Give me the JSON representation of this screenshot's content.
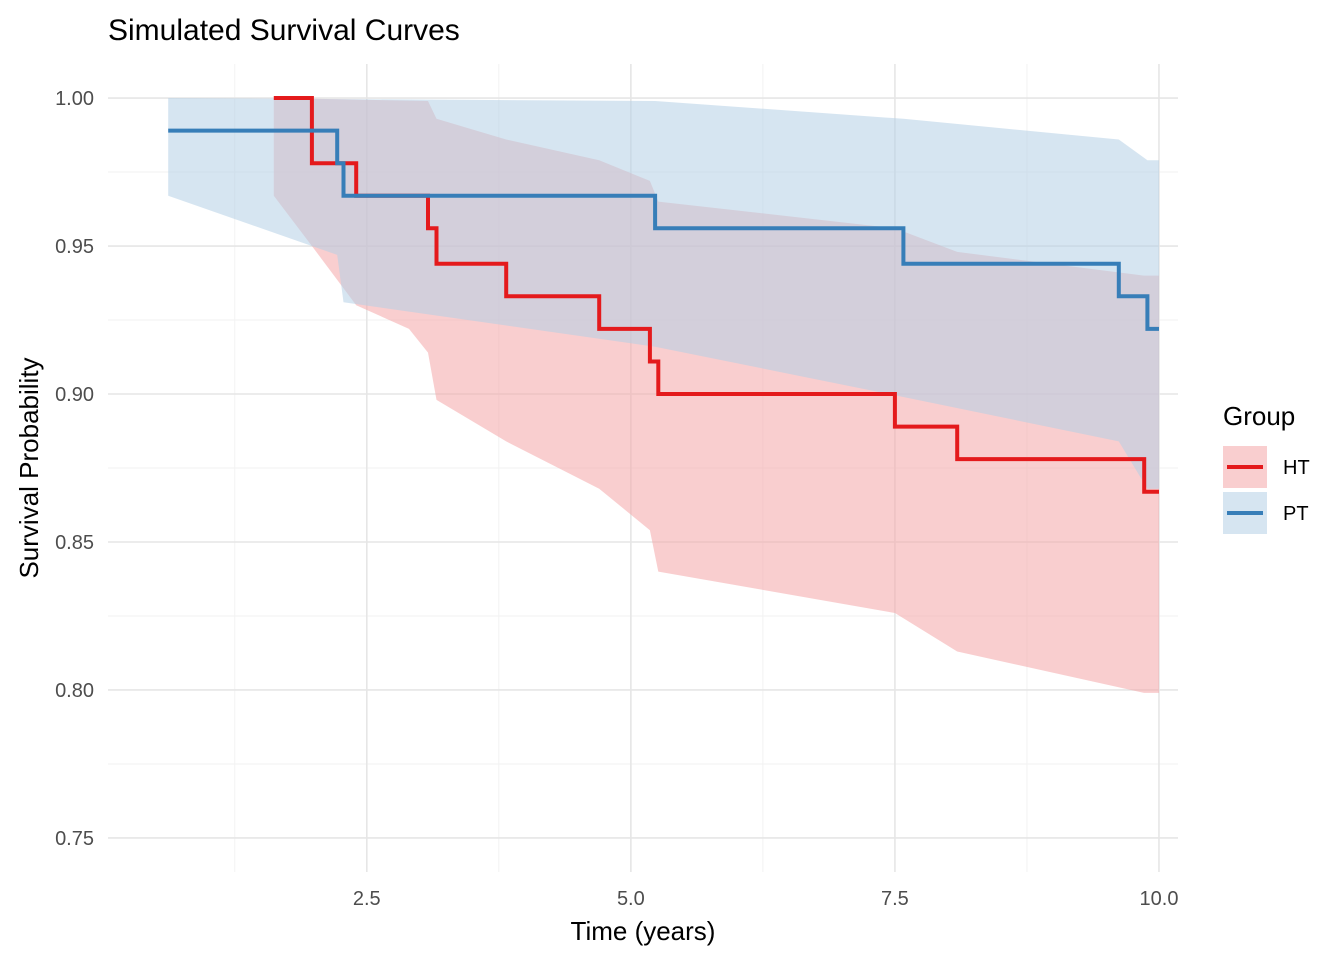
{
  "chart_data": {
    "type": "line",
    "subtype": "step-survival-with-confidence-bands",
    "title": "Simulated Survival Curves",
    "xlabel": "Time (years)",
    "ylabel": "Survival Probability",
    "xlim": [
      0.05,
      10.18
    ],
    "ylim": [
      0.7385,
      1.0115
    ],
    "x_ticks": [
      2.5,
      5.0,
      7.5,
      10.0
    ],
    "x_tick_labels": [
      "2.5",
      "5.0",
      "7.5",
      "10.0"
    ],
    "x_minor_ticks": [
      1.25,
      3.75,
      6.25,
      8.75
    ],
    "y_ticks": [
      0.75,
      0.8,
      0.85,
      0.9,
      0.95,
      1.0
    ],
    "y_tick_labels": [
      "0.75",
      "0.80",
      "0.85",
      "0.90",
      "0.95",
      "1.00"
    ],
    "y_minor_ticks": [
      0.775,
      0.825,
      0.875,
      0.925,
      0.975
    ],
    "grid": true,
    "legend": {
      "title": "Group",
      "position": "right"
    },
    "series": [
      {
        "name": "HT",
        "color": "#E41A1C",
        "band_color": "#F4A6A7",
        "steps": [
          [
            1.62,
            1.0
          ],
          [
            1.98,
            0.978
          ],
          [
            2.4,
            0.967
          ],
          [
            3.08,
            0.956
          ],
          [
            3.16,
            0.944
          ],
          [
            3.82,
            0.933
          ],
          [
            4.7,
            0.922
          ],
          [
            5.18,
            0.911
          ],
          [
            5.26,
            0.9
          ],
          [
            7.5,
            0.889
          ],
          [
            8.09,
            0.878
          ],
          [
            9.86,
            0.867
          ],
          [
            10.0,
            0.867
          ]
        ],
        "band": {
          "upper": [
            [
              1.62,
              1.0
            ],
            [
              3.08,
              0.999
            ],
            [
              3.16,
              0.993
            ],
            [
              3.82,
              0.986
            ],
            [
              4.7,
              0.979
            ],
            [
              5.18,
              0.972
            ],
            [
              5.26,
              0.965
            ],
            [
              7.5,
              0.956
            ],
            [
              8.09,
              0.948
            ],
            [
              9.86,
              0.94
            ],
            [
              10.0,
              0.94
            ]
          ],
          "lower": [
            [
              1.62,
              0.967
            ],
            [
              1.98,
              0.95
            ],
            [
              2.4,
              0.93
            ],
            [
              2.9,
              0.922
            ],
            [
              3.08,
              0.914
            ],
            [
              3.16,
              0.898
            ],
            [
              3.82,
              0.884
            ],
            [
              4.7,
              0.868
            ],
            [
              5.18,
              0.854
            ],
            [
              5.26,
              0.84
            ],
            [
              7.5,
              0.826
            ],
            [
              8.09,
              0.813
            ],
            [
              9.86,
              0.799
            ],
            [
              10.0,
              0.799
            ]
          ]
        }
      },
      {
        "name": "PT",
        "color": "#377EB8",
        "band_color": "#B4CFE6",
        "steps": [
          [
            0.62,
            0.989
          ],
          [
            2.22,
            0.978
          ],
          [
            2.28,
            0.967
          ],
          [
            5.23,
            0.956
          ],
          [
            7.58,
            0.944
          ],
          [
            9.62,
            0.933
          ],
          [
            9.89,
            0.922
          ],
          [
            10.0,
            0.922
          ]
        ],
        "band": {
          "upper": [
            [
              0.62,
              1.0
            ],
            [
              5.23,
              0.999
            ],
            [
              7.58,
              0.993
            ],
            [
              9.62,
              0.986
            ],
            [
              9.89,
              0.979
            ],
            [
              10.0,
              0.979
            ]
          ],
          "lower": [
            [
              0.62,
              0.967
            ],
            [
              2.22,
              0.947
            ],
            [
              2.28,
              0.931
            ],
            [
              5.23,
              0.916
            ],
            [
              7.58,
              0.899
            ],
            [
              9.62,
              0.884
            ],
            [
              9.89,
              0.868
            ],
            [
              10.0,
              0.868
            ]
          ]
        }
      }
    ]
  }
}
